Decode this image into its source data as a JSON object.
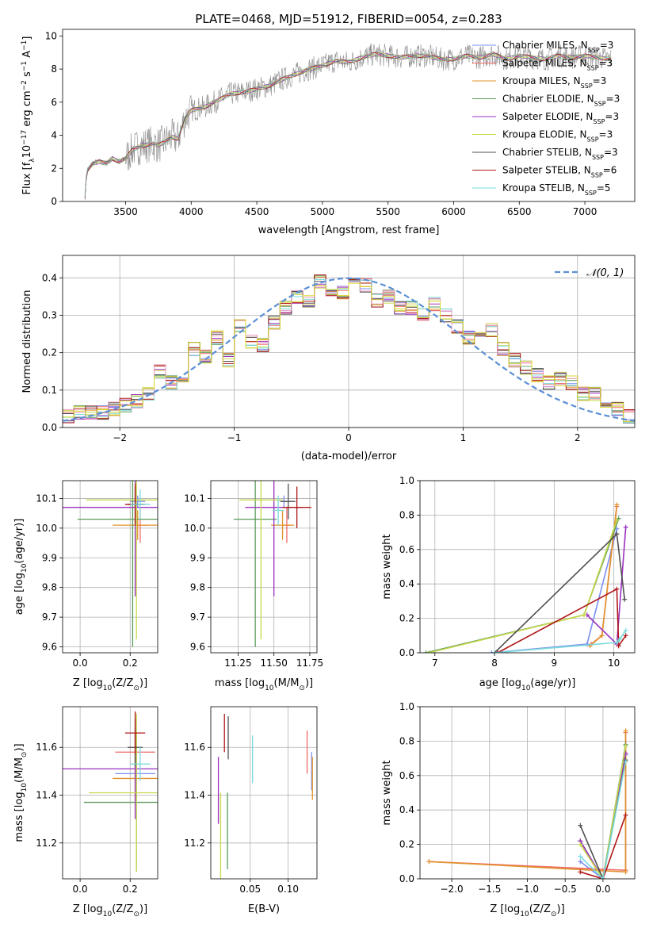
{
  "figure_title": "PLATE=0468, MJD=51912, FIBERID=0054, z=0.283",
  "colors": {
    "model_series": [
      "#7b8ef0",
      "#f06a6a",
      "#e0932a",
      "#5a9a5a",
      "#9b30c0",
      "#c8d84c",
      "#505050",
      "#b01818",
      "#7adada"
    ],
    "spectrum": "#8c8c8c",
    "gaussian": "#5b8fd6",
    "hist_extra": [
      "#e89ac0",
      "#d8d830"
    ]
  },
  "chart_data": [
    {
      "id": "spectrum",
      "type": "line",
      "title": "PLATE=0468, MJD=51912, FIBERID=0054, z=0.283",
      "xlabel": "wavelength [Angstrom, rest frame]",
      "ylabel_parts": [
        "Flux [f",
        "λ",
        "10",
        "−17",
        " erg cm",
        "−2",
        " s",
        "−1",
        " A",
        "−1",
        "]"
      ],
      "xlim": [
        3020,
        7380
      ],
      "ylim": [
        0,
        10.4
      ],
      "xticks": [
        3500,
        4000,
        4500,
        5000,
        5500,
        6000,
        6500,
        7000
      ],
      "yticks": [
        0,
        2,
        4,
        6,
        8,
        10
      ],
      "grid": false,
      "legend_position": "right",
      "x": [
        3190,
        3200,
        3210,
        3250,
        3300,
        3350,
        3400,
        3450,
        3500,
        3550,
        3600,
        3650,
        3700,
        3750,
        3800,
        3850,
        3900,
        3950,
        4000,
        4100,
        4200,
        4300,
        4400,
        4500,
        4600,
        4700,
        4800,
        4900,
        5000,
        5100,
        5200,
        5300,
        5400,
        5500,
        5600,
        5700,
        5800,
        5900,
        6000,
        6100,
        6200,
        6300,
        6400,
        6500,
        6600,
        6700,
        6800,
        6900,
        7000,
        7100,
        7200
      ],
      "y": [
        0.3,
        1.4,
        1.9,
        2.3,
        2.4,
        2.3,
        2.6,
        2.4,
        2.6,
        3.1,
        3.3,
        3.4,
        3.5,
        3.4,
        3.6,
        3.9,
        3.8,
        5.0,
        5.5,
        5.7,
        6.1,
        6.5,
        6.6,
        6.8,
        7.0,
        7.4,
        7.7,
        8.0,
        8.2,
        8.5,
        8.4,
        8.7,
        8.9,
        8.8,
        8.7,
        8.8,
        8.8,
        8.6,
        8.6,
        8.8,
        8.7,
        8.9,
        8.6,
        8.8,
        8.7,
        8.6,
        8.8,
        8.7,
        8.8,
        8.7,
        8.6
      ],
      "legend": [
        {
          "prefix": "Chabrier MILES, N",
          "sub": "SSP",
          "suffix": "=3"
        },
        {
          "prefix": "Salpeter MILES, N",
          "sub": "SSP",
          "suffix": "=3"
        },
        {
          "prefix": "Kroupa MILES, N",
          "sub": "SSP",
          "suffix": "=3"
        },
        {
          "prefix": "Chabrier ELODIE, N",
          "sub": "SSP",
          "suffix": "=3"
        },
        {
          "prefix": "Salpeter ELODIE, N",
          "sub": "SSP",
          "suffix": "=3"
        },
        {
          "prefix": "Kroupa ELODIE, N",
          "sub": "SSP",
          "suffix": "=3"
        },
        {
          "prefix": "Chabrier STELIB, N",
          "sub": "SSP",
          "suffix": "=3"
        },
        {
          "prefix": "Salpeter STELIB, N",
          "sub": "SSP",
          "suffix": "=6"
        },
        {
          "prefix": "Kroupa STELIB, N",
          "sub": "SSP",
          "suffix": "=5"
        }
      ]
    },
    {
      "id": "residuals",
      "type": "line",
      "xlabel": "(data-model)/error",
      "ylabel": "Normed distribution",
      "xlim": [
        -2.5,
        2.5
      ],
      "ylim": [
        0,
        0.46
      ],
      "xticks": [
        -2,
        -1,
        0,
        1,
        2
      ],
      "xtick_labels": [
        "−2",
        "−1",
        "0",
        "1",
        "2"
      ],
      "yticks": [
        0.0,
        0.1,
        0.2,
        0.3,
        0.4
      ],
      "grid": true,
      "legend_position": "top-right",
      "legend_label": "𝒩(0, 1)",
      "bin_edges": [
        -2.5,
        -2.4,
        -2.3,
        -2.2,
        -2.1,
        -2.0,
        -1.9,
        -1.8,
        -1.7,
        -1.6,
        -1.5,
        -1.4,
        -1.3,
        -1.2,
        -1.1,
        -1.0,
        -0.9,
        -0.8,
        -0.7,
        -0.6,
        -0.5,
        -0.4,
        -0.3,
        -0.2,
        -0.1,
        0.0,
        0.1,
        0.2,
        0.3,
        0.4,
        0.5,
        0.6,
        0.7,
        0.8,
        0.9,
        1.0,
        1.1,
        1.2,
        1.3,
        1.4,
        1.5,
        1.6,
        1.7,
        1.8,
        1.9,
        2.0,
        2.1,
        2.2,
        2.3,
        2.4,
        2.5
      ],
      "histogram": [
        0.03,
        0.04,
        0.04,
        0.04,
        0.05,
        0.06,
        0.07,
        0.09,
        0.15,
        0.12,
        0.14,
        0.21,
        0.19,
        0.24,
        0.18,
        0.27,
        0.23,
        0.22,
        0.28,
        0.32,
        0.35,
        0.34,
        0.39,
        0.36,
        0.36,
        0.38,
        0.38,
        0.34,
        0.35,
        0.32,
        0.32,
        0.3,
        0.33,
        0.3,
        0.27,
        0.24,
        0.24,
        0.26,
        0.21,
        0.18,
        0.16,
        0.14,
        0.12,
        0.13,
        0.12,
        0.09,
        0.09,
        0.07,
        0.05,
        0.03
      ],
      "gaussian_mu": 0,
      "gaussian_sigma": 1
    },
    {
      "id": "age-vs-z",
      "type": "scatter",
      "xlabel_parts": [
        "Z [log",
        "10",
        "(Z/Z",
        "⊙",
        ")]"
      ],
      "ylabel_parts": [
        "age  [log",
        "10",
        "(age/yr)]"
      ],
      "xlim": [
        -0.07,
        0.31
      ],
      "ylim": [
        9.58,
        10.16
      ],
      "xticks": [
        0.0,
        0.2
      ],
      "xtick_labels": [
        "0.0",
        "0.2"
      ],
      "yticks": [
        9.6,
        9.7,
        9.8,
        9.9,
        10.0,
        10.1
      ],
      "grid": true,
      "points": [
        {
          "series": 0,
          "x": 0.23,
          "y": 10.09,
          "xerr": 0.03,
          "yerr": 0.02
        },
        {
          "series": 1,
          "x": 0.24,
          "y": 10.01,
          "xerr": 0.03,
          "yerr": 0.06
        },
        {
          "series": 2,
          "x": 0.23,
          "y": 10.01,
          "xerr": 0.1,
          "yerr": 0.05
        },
        {
          "series": 3,
          "x": 0.21,
          "y": 10.03,
          "xerr": 0.22,
          "yerr": 0.43
        },
        {
          "series": 4,
          "x": 0.22,
          "y": 10.07,
          "xerr": 0.29,
          "yerr": 0.3
        },
        {
          "series": 5,
          "x": 0.225,
          "y": 10.095,
          "xerr": 0.2,
          "yerr": 0.47
        },
        {
          "series": 6,
          "x": 0.22,
          "y": 10.08,
          "xerr": 0.03,
          "yerr": 0.06
        },
        {
          "series": 7,
          "x": 0.22,
          "y": 10.08,
          "xerr": 0.04,
          "yerr": 0.07
        },
        {
          "series": 8,
          "x": 0.24,
          "y": 10.08,
          "xerr": 0.04,
          "yerr": 0.05
        }
      ]
    },
    {
      "id": "age-vs-mass",
      "type": "scatter",
      "xlabel_parts": [
        "mass [log",
        "10",
        "(M/M",
        "⊙",
        ")]"
      ],
      "xlim": [
        11.06,
        11.8
      ],
      "ylim": [
        9.58,
        10.16
      ],
      "xticks": [
        11.25,
        11.5,
        11.75
      ],
      "xtick_labels": [
        "11.25",
        "11.50",
        "11.75"
      ],
      "yticks": [
        9.6,
        9.7,
        9.8,
        9.9,
        10.0,
        10.1
      ],
      "grid": true,
      "points": [
        {
          "series": 0,
          "x": 11.57,
          "y": 10.09,
          "xerr": 0.03,
          "yerr": 0.02
        },
        {
          "series": 1,
          "x": 11.59,
          "y": 10.01,
          "xerr": 0.03,
          "yerr": 0.06
        },
        {
          "series": 2,
          "x": 11.56,
          "y": 10.01,
          "xerr": 0.08,
          "yerr": 0.05
        },
        {
          "series": 3,
          "x": 11.37,
          "y": 10.03,
          "xerr": 0.15,
          "yerr": 0.43
        },
        {
          "series": 4,
          "x": 11.5,
          "y": 10.07,
          "xerr": 0.2,
          "yerr": 0.3
        },
        {
          "series": 5,
          "x": 11.41,
          "y": 10.095,
          "xerr": 0.15,
          "yerr": 0.47
        },
        {
          "series": 6,
          "x": 11.6,
          "y": 10.09,
          "xerr": 0.05,
          "yerr": 0.06
        },
        {
          "series": 7,
          "x": 11.66,
          "y": 10.07,
          "xerr": 0.1,
          "yerr": 0.07
        },
        {
          "series": 8,
          "x": 11.53,
          "y": 10.06,
          "xerr": 0.04,
          "yerr": 0.05
        }
      ]
    },
    {
      "id": "mass-weight-vs-age",
      "type": "line",
      "xlabel_parts": [
        "age  [log",
        "10",
        "(age/yr)]"
      ],
      "ylabel": "mass weight",
      "xlim": [
        6.75,
        10.35
      ],
      "ylim": [
        0,
        1.0
      ],
      "xticks": [
        7,
        8,
        9,
        10
      ],
      "yticks": [
        0.0,
        0.2,
        0.4,
        0.6,
        0.8,
        1.0
      ],
      "grid": true,
      "series": [
        {
          "series": 0,
          "x": [
            7.95,
            9.55,
            10.05
          ],
          "y": [
            0.0,
            0.05,
            0.72
          ]
        },
        {
          "series": 1,
          "x": [
            9.62,
            9.8,
            10.05
          ],
          "y": [
            0.05,
            0.1,
            0.85
          ]
        },
        {
          "series": 2,
          "x": [
            9.6,
            9.8,
            10.05
          ],
          "y": [
            0.04,
            0.1,
            0.86
          ]
        },
        {
          "series": 3,
          "x": [
            6.85,
            9.5,
            10.08
          ],
          "y": [
            0.0,
            0.22,
            0.78
          ]
        },
        {
          "series": 4,
          "x": [
            9.55,
            10.05,
            10.2
          ],
          "y": [
            0.22,
            0.05,
            0.73
          ]
        },
        {
          "series": 5,
          "x": [
            6.9,
            9.5,
            10.05
          ],
          "y": [
            0.0,
            0.22,
            0.77
          ]
        },
        {
          "series": 6,
          "x": [
            8.0,
            10.05,
            10.18
          ],
          "y": [
            0.0,
            0.69,
            0.31
          ]
        },
        {
          "series": 7,
          "x": [
            8.05,
            10.05,
            10.08,
            10.2
          ],
          "y": [
            0.0,
            0.37,
            0.04,
            0.1
          ]
        },
        {
          "series": 8,
          "x": [
            8.0,
            10.05,
            10.1,
            10.2
          ],
          "y": [
            0.0,
            0.06,
            0.08,
            0.13
          ]
        }
      ]
    },
    {
      "id": "mass-vs-z",
      "type": "scatter",
      "xlabel_parts": [
        "Z [log",
        "10",
        "(Z/Z",
        "⊙",
        ")]"
      ],
      "ylabel_parts": [
        "mass [log",
        "10",
        "(M/M",
        "⊙",
        ")]"
      ],
      "xlim": [
        -0.07,
        0.31
      ],
      "ylim": [
        11.05,
        11.77
      ],
      "xticks": [
        0.0,
        0.2
      ],
      "xtick_labels": [
        "0.0",
        "0.2"
      ],
      "yticks": [
        11.2,
        11.4,
        11.6
      ],
      "grid": true,
      "points": [
        {
          "series": 0,
          "x": 0.22,
          "y": 11.49,
          "xerr": 0.08,
          "yerr": 0.04
        },
        {
          "series": 1,
          "x": 0.22,
          "y": 11.58,
          "xerr": 0.08,
          "yerr": 0.08
        },
        {
          "series": 2,
          "x": 0.22,
          "y": 11.47,
          "xerr": 0.09,
          "yerr": 0.09
        },
        {
          "series": 3,
          "x": 0.225,
          "y": 11.37,
          "xerr": 0.21,
          "yerr": 0.29
        },
        {
          "series": 4,
          "x": 0.22,
          "y": 11.51,
          "xerr": 0.29,
          "yerr": 0.21
        },
        {
          "series": 5,
          "x": 0.225,
          "y": 11.41,
          "xerr": 0.19,
          "yerr": 0.33
        },
        {
          "series": 6,
          "x": 0.22,
          "y": 11.6,
          "xerr": 0.03,
          "yerr": 0.08
        },
        {
          "series": 7,
          "x": 0.22,
          "y": 11.66,
          "xerr": 0.04,
          "yerr": 0.09
        },
        {
          "series": 8,
          "x": 0.24,
          "y": 11.53,
          "xerr": 0.04,
          "yerr": 0.07
        }
      ]
    },
    {
      "id": "mass-vs-ebv",
      "type": "scatter",
      "xlabel": "E(B-V)",
      "xlim": [
        -0.002,
        0.138
      ],
      "ylim": [
        11.05,
        11.77
      ],
      "xticks": [
        0.05,
        0.1
      ],
      "xtick_labels": [
        "0.05",
        "0.10"
      ],
      "yticks": [
        11.2,
        11.4,
        11.6
      ],
      "grid": true,
      "points": [
        {
          "series": 0,
          "x": 0.131,
          "y": 11.5,
          "xerr": 0.0,
          "yerr": 0.08
        },
        {
          "series": 1,
          "x": 0.125,
          "y": 11.58,
          "xerr": 0.0,
          "yerr": 0.09
        },
        {
          "series": 2,
          "x": 0.132,
          "y": 11.47,
          "xerr": 0.0,
          "yerr": 0.09
        },
        {
          "series": 3,
          "x": 0.02,
          "y": 11.25,
          "xerr": 0.0,
          "yerr": 0.16
        },
        {
          "series": 4,
          "x": 0.008,
          "y": 11.42,
          "xerr": 0.0,
          "yerr": 0.14
        },
        {
          "series": 5,
          "x": 0.011,
          "y": 11.23,
          "xerr": 0.0,
          "yerr": 0.18
        },
        {
          "series": 6,
          "x": 0.021,
          "y": 11.64,
          "xerr": 0.0,
          "yerr": 0.09
        },
        {
          "series": 7,
          "x": 0.016,
          "y": 11.66,
          "xerr": 0.0,
          "yerr": 0.08
        },
        {
          "series": 8,
          "x": 0.053,
          "y": 11.55,
          "xerr": 0.0,
          "yerr": 0.1
        }
      ]
    },
    {
      "id": "mass-weight-vs-z",
      "type": "line",
      "xlabel_parts": [
        "Z [log",
        "10",
        "(Z/Z",
        "⊙",
        ")]"
      ],
      "ylabel": "mass weight",
      "xlim": [
        -2.42,
        0.42
      ],
      "ylim": [
        0,
        1.0
      ],
      "xticks": [
        -2.0,
        -1.5,
        -1.0,
        -0.5,
        0.0
      ],
      "xtick_labels": [
        "−2.0",
        "−1.5",
        "−1.0",
        "−0.5",
        "0.0"
      ],
      "yticks": [
        0.0,
        0.2,
        0.4,
        0.6,
        0.8,
        1.0
      ],
      "grid": true,
      "series": [
        {
          "series": 0,
          "x": [
            -0.3,
            0.0,
            0.3
          ],
          "y": [
            0.1,
            0.0,
            0.72
          ]
        },
        {
          "series": 1,
          "x": [
            -2.3,
            0.3,
            0.3
          ],
          "y": [
            0.1,
            0.05,
            0.85
          ]
        },
        {
          "series": 2,
          "x": [
            -2.3,
            0.3,
            0.3
          ],
          "y": [
            0.1,
            0.04,
            0.86
          ]
        },
        {
          "series": 3,
          "x": [
            -0.3,
            0.0,
            0.3
          ],
          "y": [
            0.22,
            0.0,
            0.78
          ]
        },
        {
          "series": 4,
          "x": [
            -0.3,
            0.0,
            0.3
          ],
          "y": [
            0.22,
            0.0,
            0.73
          ]
        },
        {
          "series": 5,
          "x": [
            -0.3,
            0.0,
            0.3
          ],
          "y": [
            0.2,
            0.0,
            0.77
          ]
        },
        {
          "series": 6,
          "x": [
            -0.3,
            0.0,
            0.3
          ],
          "y": [
            0.31,
            0.0,
            0.69
          ]
        },
        {
          "series": 7,
          "x": [
            -0.3,
            0.0,
            0.3
          ],
          "y": [
            0.04,
            0.0,
            0.37
          ]
        },
        {
          "series": 8,
          "x": [
            -0.3,
            0.0,
            0.3
          ],
          "y": [
            0.13,
            0.0,
            0.68
          ]
        }
      ]
    }
  ]
}
